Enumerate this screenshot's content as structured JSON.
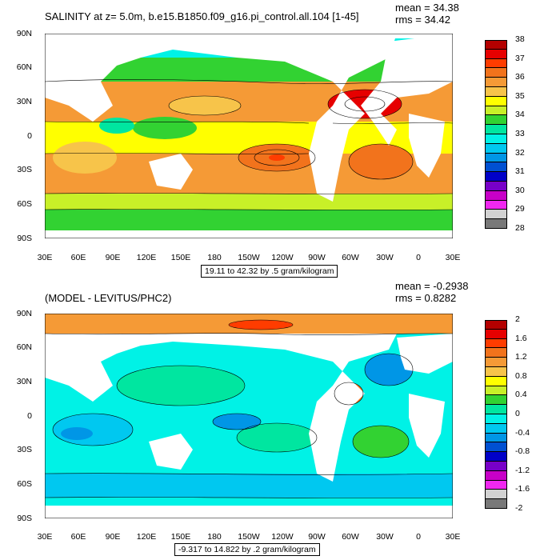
{
  "top": {
    "title": "SALINITY at z=   5.0m, b.e15.B1850.f09_g16.pi_control.all.104 [1-45]",
    "mean": "mean = 34.38",
    "rms": "rms = 34.42",
    "contour_info": "19.11 to 42.32 by .5 gram/kilogram",
    "colorbar_labels": [
      "38",
      "37",
      "36",
      "35",
      "34",
      "33",
      "32",
      "31",
      "30",
      "29",
      "28"
    ],
    "colorbar_colors": [
      "#b40000",
      "#e60000",
      "#ff3c00",
      "#f2731c",
      "#f59a36",
      "#f7c44a",
      "#ffff00",
      "#c8f028",
      "#32d232",
      "#00e6a0",
      "#00f2e6",
      "#00c8f0",
      "#0096e6",
      "#0050d2",
      "#0000c8",
      "#7800c8",
      "#c800c8",
      "#f028f0",
      "#d2d2d2",
      "#787878"
    ]
  },
  "bottom": {
    "title": "(MODEL - LEVITUS/PHC2)",
    "mean": "mean = -0.2938",
    "rms": "rms = 0.8282",
    "contour_info": "-9.317 to 14.822 by .2 gram/kilogram",
    "colorbar_labels": [
      "2",
      "1.6",
      "1.2",
      "0.8",
      "0.4",
      "0",
      "-0.4",
      "-0.8",
      "-1.2",
      "-1.6",
      "-2"
    ],
    "colorbar_colors": [
      "#b40000",
      "#e60000",
      "#ff3c00",
      "#f2731c",
      "#f59a36",
      "#f7c44a",
      "#ffff00",
      "#c8f028",
      "#32d232",
      "#00e6a0",
      "#00f2e6",
      "#00c8f0",
      "#0096e6",
      "#0050d2",
      "#0000c8",
      "#7800c8",
      "#c800c8",
      "#f028f0",
      "#d2d2d2",
      "#787878"
    ]
  },
  "axes": {
    "lat_labels": [
      "90N",
      "60N",
      "30N",
      "0",
      "30S",
      "60S",
      "90S"
    ],
    "lon_labels": [
      "30E",
      "60E",
      "90E",
      "120E",
      "150E",
      "180",
      "150W",
      "120W",
      "90W",
      "60W",
      "30W",
      "0",
      "30E"
    ]
  },
  "land_color": "#ffffff"
}
